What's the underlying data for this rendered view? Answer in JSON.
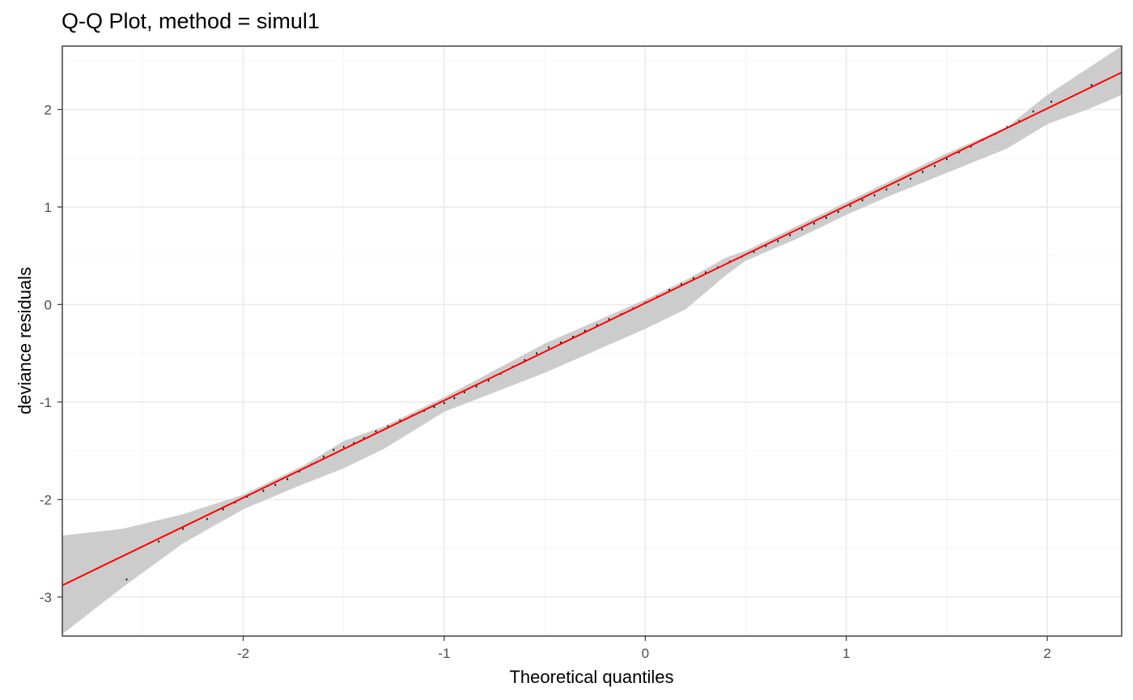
{
  "chart_data": {
    "type": "scatter",
    "title": "Q-Q Plot, method = simul1",
    "xlabel": "Theoretical quantiles",
    "ylabel": "deviance residuals",
    "xlim": [
      -2.9,
      2.37
    ],
    "ylim": [
      -3.4,
      2.65
    ],
    "x_ticks": [
      -2,
      -1,
      0,
      1,
      2
    ],
    "y_ticks": [
      -3,
      -2,
      -1,
      0,
      1,
      2
    ],
    "x_tick_labels": [
      "-2",
      "-1",
      "0",
      "1",
      "2"
    ],
    "y_tick_labels": [
      "-3",
      "-2",
      "-1",
      "0",
      "1",
      "2"
    ],
    "grid": true,
    "reference_line": {
      "x": [
        -2.9,
        2.37
      ],
      "y": [
        -2.88,
        2.38
      ]
    },
    "envelope": {
      "x": [
        -2.9,
        -2.6,
        -2.3,
        -2.0,
        -1.7,
        -1.5,
        -1.3,
        -1.0,
        -0.5,
        0.0,
        0.2,
        0.4,
        0.5,
        0.75,
        1.0,
        1.2,
        1.5,
        1.8,
        2.0,
        2.2,
        2.37
      ],
      "lower": [
        -3.38,
        -2.9,
        -2.45,
        -2.1,
        -1.84,
        -1.68,
        -1.48,
        -1.1,
        -0.7,
        -0.25,
        -0.05,
        0.3,
        0.45,
        0.67,
        0.92,
        1.1,
        1.35,
        1.6,
        1.85,
        2.0,
        2.15
      ],
      "upper": [
        -2.37,
        -2.3,
        -2.15,
        -1.95,
        -1.65,
        -1.4,
        -1.25,
        -0.95,
        -0.4,
        0.05,
        0.25,
        0.48,
        0.55,
        0.8,
        1.05,
        1.25,
        1.55,
        1.82,
        2.15,
        2.42,
        2.65
      ]
    },
    "points": {
      "x": [
        -2.58,
        -2.42,
        -2.3,
        -2.18,
        -2.1,
        -2.04,
        -1.98,
        -1.9,
        -1.84,
        -1.78,
        -1.72,
        -1.66,
        -1.6,
        -1.55,
        -1.5,
        -1.45,
        -1.4,
        -1.34,
        -1.28,
        -1.22,
        -1.16,
        -1.1,
        -1.05,
        -1.0,
        -0.95,
        -0.9,
        -0.84,
        -0.78,
        -0.72,
        -0.66,
        -0.6,
        -0.54,
        -0.48,
        -0.42,
        -0.36,
        -0.3,
        -0.24,
        -0.18,
        -0.12,
        -0.06,
        0.0,
        0.06,
        0.12,
        0.18,
        0.24,
        0.3,
        0.36,
        0.42,
        0.48,
        0.54,
        0.6,
        0.66,
        0.72,
        0.78,
        0.84,
        0.9,
        0.96,
        1.02,
        1.08,
        1.14,
        1.2,
        1.26,
        1.32,
        1.38,
        1.44,
        1.5,
        1.56,
        1.62,
        1.68,
        1.74,
        1.8,
        1.86,
        1.93,
        2.02,
        2.22
      ],
      "y": [
        -2.82,
        -2.43,
        -2.3,
        -2.2,
        -2.1,
        -2.03,
        -1.97,
        -1.91,
        -1.85,
        -1.79,
        -1.71,
        -1.64,
        -1.56,
        -1.49,
        -1.46,
        -1.42,
        -1.37,
        -1.3,
        -1.25,
        -1.19,
        -1.14,
        -1.09,
        -1.05,
        -1.01,
        -0.96,
        -0.9,
        -0.84,
        -0.78,
        -0.71,
        -0.64,
        -0.57,
        -0.5,
        -0.44,
        -0.39,
        -0.33,
        -0.27,
        -0.21,
        -0.15,
        -0.1,
        -0.04,
        0.02,
        0.08,
        0.15,
        0.21,
        0.27,
        0.33,
        0.38,
        0.44,
        0.49,
        0.54,
        0.6,
        0.65,
        0.71,
        0.77,
        0.83,
        0.89,
        0.95,
        1.01,
        1.07,
        1.12,
        1.18,
        1.23,
        1.29,
        1.36,
        1.42,
        1.49,
        1.56,
        1.62,
        1.69,
        1.75,
        1.82,
        1.88,
        1.98,
        2.08,
        2.25
      ]
    },
    "colors": {
      "envelope": "#cccccc",
      "line": "#ff0000",
      "points": "#000000",
      "grid_major": "#ebebeb",
      "grid_minor": "#f4f4f4",
      "border": "#333333",
      "tick_label": "#4d4d4d"
    }
  }
}
